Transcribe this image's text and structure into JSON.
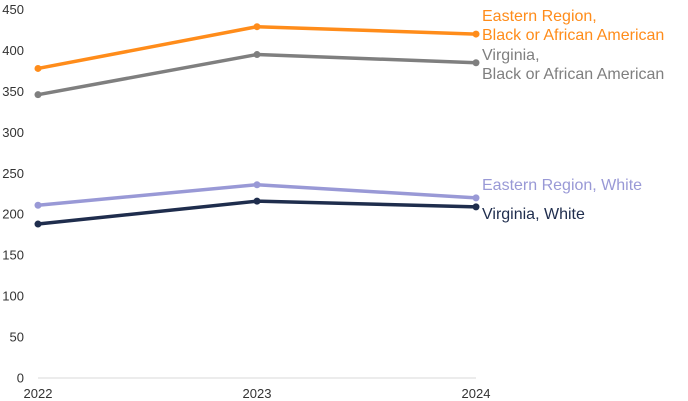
{
  "chart_data": {
    "type": "line",
    "title": "",
    "xlabel": "",
    "ylabel": "",
    "x": [
      "2022",
      "2023",
      "2024"
    ],
    "ylim": [
      0,
      450
    ],
    "yticks": [
      0,
      50,
      100,
      150,
      200,
      250,
      300,
      350,
      400,
      450
    ],
    "grid": false,
    "legend": "direct labels at right end of lines",
    "series": [
      {
        "name": "Eastern Region, Black or African American",
        "label_lines": [
          "Eastern Region,",
          "Black or African American"
        ],
        "values": [
          378,
          429,
          420
        ],
        "color": "#ff8c1a"
      },
      {
        "name": "Virginia, Black or African American",
        "label_lines": [
          "Virginia,",
          "Black or African American"
        ],
        "values": [
          346,
          395,
          385
        ],
        "color": "#7f7f7f"
      },
      {
        "name": "Eastern Region, White",
        "label_lines": [
          "Eastern Region, White"
        ],
        "values": [
          211,
          236,
          220
        ],
        "color": "#9999d6"
      },
      {
        "name": "Virginia, White",
        "label_lines": [
          "Virginia, White"
        ],
        "values": [
          188,
          216,
          209
        ],
        "color": "#1f2d4d"
      }
    ]
  }
}
